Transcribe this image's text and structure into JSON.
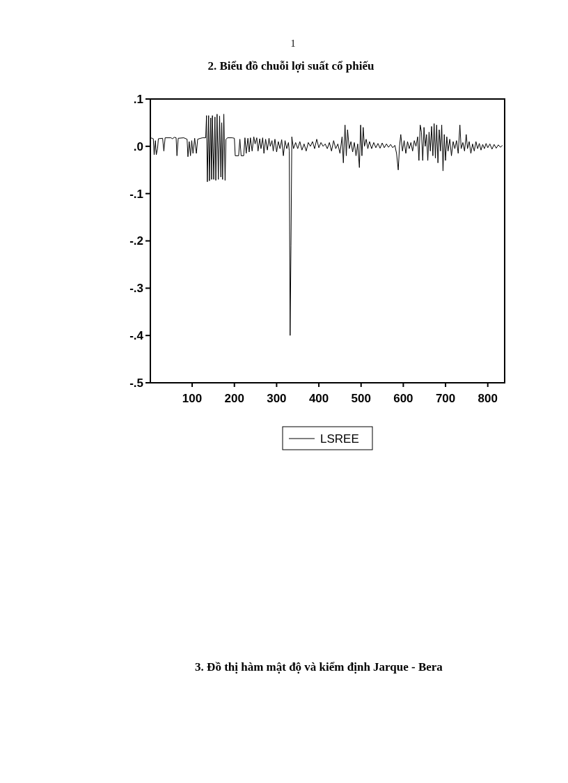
{
  "chart_data": {
    "type": "line",
    "title": "2. Biểu đồ chuỗi lợi suất cổ phiếu",
    "annotations": [
      "1",
      "3. Đồ thị hàm mật độ và kiểm định Jarque - Bera"
    ],
    "xlim": [
      1,
      840
    ],
    "xticks": [
      100,
      200,
      300,
      400,
      500,
      600,
      700,
      800
    ],
    "ylim": [
      -0.5,
      0.1
    ],
    "yticks": [
      {
        "value": 0.1,
        "label": ".1"
      },
      {
        "value": 0,
        "label": ".0"
      },
      {
        "value": -0.1,
        "label": "-.1"
      },
      {
        "value": -0.2,
        "label": "-.2"
      },
      {
        "value": -0.3,
        "label": "-.3"
      },
      {
        "value": -0.4,
        "label": "-.4"
      },
      {
        "value": -0.5,
        "label": "-.5"
      }
    ],
    "grid": false,
    "legend": "bottom",
    "line_style": "solid",
    "series": [
      {
        "name": "LSREE",
        "color": "#000000",
        "x": [
          1,
          5,
          8,
          10,
          13,
          15,
          18,
          20,
          30,
          33,
          36,
          50,
          53,
          58,
          62,
          64,
          67,
          80,
          88,
          90,
          93,
          96,
          99,
          102,
          106,
          110,
          113,
          120,
          125,
          132,
          134,
          136,
          139,
          141,
          144,
          146,
          148,
          151,
          154,
          156,
          159,
          162,
          165,
          168,
          170,
          172,
          175,
          178,
          180,
          184,
          195,
          200,
          202,
          210,
          213,
          216,
          222,
          225,
          228,
          232,
          235,
          238,
          242,
          246,
          249,
          253,
          256,
          260,
          263,
          267,
          270,
          274,
          278,
          282,
          285,
          289,
          292,
          296,
          300,
          304,
          308,
          312,
          316,
          320,
          324,
          328,
          330,
          332,
          334,
          336,
          340,
          345,
          350,
          355,
          360,
          365,
          370,
          375,
          380,
          385,
          390,
          395,
          400,
          405,
          410,
          415,
          420,
          425,
          430,
          435,
          440,
          445,
          450,
          455,
          458,
          462,
          465,
          468,
          472,
          476,
          480,
          484,
          488,
          492,
          496,
          499,
          502,
          505,
          508,
          512,
          516,
          520,
          525,
          530,
          535,
          540,
          545,
          550,
          555,
          560,
          565,
          570,
          575,
          580,
          584,
          588,
          591,
          594,
          598,
          602,
          606,
          610,
          614,
          618,
          622,
          626,
          630,
          634,
          637,
          640,
          643,
          646,
          649,
          652,
          655,
          658,
          661,
          664,
          667,
          670,
          673,
          676,
          679,
          682,
          685,
          688,
          691,
          694,
          697,
          700,
          703,
          706,
          710,
          714,
          718,
          722,
          726,
          730,
          734,
          737,
          741,
          745,
          749,
          752,
          756,
          760,
          764,
          768,
          772,
          776,
          780,
          784,
          788,
          792,
          796,
          800,
          805,
          810,
          815,
          820,
          825,
          830,
          835
        ],
        "values": [
          0.018,
          0.017,
          0.016,
          -0.018,
          0.012,
          -0.018,
          -0.005,
          0.016,
          0.017,
          -0.01,
          0.018,
          0.018,
          0.016,
          0.019,
          0.018,
          -0.02,
          0.017,
          0.018,
          0.015,
          -0.022,
          0.01,
          -0.02,
          0.012,
          -0.015,
          0.017,
          -0.015,
          0.015,
          0.017,
          0.018,
          0.018,
          0.065,
          -0.075,
          0.065,
          -0.073,
          0.06,
          -0.07,
          0.065,
          -0.07,
          0.062,
          -0.072,
          0.068,
          -0.07,
          0.064,
          -0.065,
          0.05,
          -0.07,
          0.068,
          -0.072,
          0.015,
          0.018,
          0.018,
          0.017,
          -0.02,
          -0.02,
          0.015,
          -0.02,
          -0.02,
          0.018,
          -0.015,
          0.017,
          -0.012,
          0.018,
          -0.01,
          0.02,
          0.005,
          0.018,
          -0.01,
          0.016,
          -0.005,
          0.018,
          -0.015,
          0.015,
          -0.008,
          0.017,
          0.0,
          0.012,
          -0.01,
          0.015,
          -0.012,
          0.01,
          -0.005,
          0.014,
          -0.02,
          0.012,
          -0.005,
          0.008,
          -0.01,
          -0.4,
          -0.21,
          0.02,
          -0.005,
          0.008,
          -0.005,
          0.01,
          -0.008,
          0.005,
          -0.01,
          0.008,
          0.0,
          0.01,
          -0.005,
          0.015,
          -0.003,
          0.008,
          0.0,
          0.005,
          -0.005,
          0.008,
          -0.01,
          0.012,
          -0.005,
          0.005,
          -0.015,
          0.02,
          -0.035,
          0.045,
          -0.02,
          0.035,
          -0.005,
          0.01,
          -0.012,
          0.008,
          -0.02,
          0.005,
          -0.045,
          0.045,
          -0.02,
          0.04,
          0.0,
          0.015,
          -0.005,
          0.01,
          -0.005,
          0.008,
          -0.003,
          0.006,
          -0.004,
          0.007,
          -0.003,
          0.005,
          -0.002,
          0.004,
          -0.003,
          0.002,
          -0.015,
          -0.05,
          0.0,
          0.025,
          -0.01,
          0.012,
          -0.015,
          0.01,
          -0.005,
          0.008,
          -0.01,
          0.012,
          0.0,
          0.02,
          -0.03,
          0.045,
          0.03,
          -0.03,
          0.04,
          0.0,
          0.025,
          -0.03,
          0.03,
          -0.01,
          0.042,
          -0.02,
          0.048,
          -0.025,
          0.045,
          -0.035,
          0.035,
          -0.01,
          0.045,
          -0.052,
          0.025,
          -0.03,
          0.02,
          -0.01,
          0.015,
          -0.02,
          0.01,
          -0.005,
          0.012,
          -0.015,
          0.045,
          -0.005,
          0.008,
          -0.01,
          0.025,
          -0.005,
          0.01,
          -0.015,
          0.005,
          -0.01,
          0.01,
          -0.005,
          0.006,
          -0.008,
          0.004,
          -0.005,
          0.006,
          -0.003,
          0.005,
          -0.006,
          0.004,
          -0.004,
          0.003,
          -0.002,
          0.002
        ]
      }
    ]
  }
}
